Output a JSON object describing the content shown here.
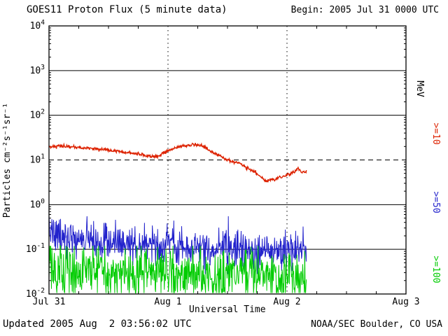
{
  "header": {
    "title": "GOES11 Proton Flux (5 minute data)",
    "begin_label": "Begin: 2005 Jul 31 0000 UTC"
  },
  "footer": {
    "updated_label": "Updated 2005 Aug  2 03:56:02 UTC",
    "credit_label": "NOAA/SEC Boulder, CO USA"
  },
  "chart_data": {
    "type": "line",
    "title": "GOES11 Proton Flux (5 minute data)",
    "xlabel": "Universal Time",
    "ylabel": "Particles cm⁻²s⁻¹sr⁻¹",
    "right_axis_title": "MeV",
    "x_range_hours": [
      0,
      72
    ],
    "y_log_range": [
      -2,
      4
    ],
    "x_ticks": [
      {
        "hours": 0,
        "label": "Jul 31"
      },
      {
        "hours": 24,
        "label": "Aug 1"
      },
      {
        "hours": 48,
        "label": "Aug 2"
      },
      {
        "hours": 72,
        "label": "Aug 3"
      }
    ],
    "y_ticks": [
      {
        "exp": 4,
        "label": "10⁴"
      },
      {
        "exp": 3,
        "label": "10³"
      },
      {
        "exp": 2,
        "label": "10²"
      },
      {
        "exp": 1,
        "label": "10¹"
      },
      {
        "exp": 0,
        "label": "10⁰"
      },
      {
        "exp": -1,
        "label": "10⁻¹"
      },
      {
        "exp": -2,
        "label": "10⁻²"
      }
    ],
    "h_gridlines": [
      {
        "exp": 3,
        "style": "solid"
      },
      {
        "exp": 2,
        "style": "solid"
      },
      {
        "exp": 1,
        "style": "dashed"
      },
      {
        "exp": 0,
        "style": "solid"
      },
      {
        "exp": -1,
        "style": "solid"
      }
    ],
    "v_gridlines_hours": [
      24,
      48
    ],
    "x_minor_tick_hours": 6,
    "y_minor_ticks": true,
    "grid": true,
    "axis_color": "#000000",
    "sample_minutes": 5,
    "data_end_hours": 51.92,
    "series": [
      {
        "name": "ge10",
        "label": ">=10",
        "threshold_mev": 10,
        "color": "#dd2200",
        "stroke_width": 1.4,
        "seed": 42,
        "noise_log_sigma": 0.018,
        "clip": [
          2.6,
          28
        ],
        "trend": [
          [
            0,
            20
          ],
          [
            2,
            20.5
          ],
          [
            4,
            20
          ],
          [
            6,
            19
          ],
          [
            8,
            18.5
          ],
          [
            10,
            17.5
          ],
          [
            12,
            16.5
          ],
          [
            14,
            15.5
          ],
          [
            16,
            14.5
          ],
          [
            18,
            13.5
          ],
          [
            19,
            13
          ],
          [
            20,
            12.3
          ],
          [
            21,
            11.6
          ],
          [
            21.5,
            12.4
          ],
          [
            22,
            12.0
          ],
          [
            22.5,
            12.8
          ],
          [
            23,
            14
          ],
          [
            24,
            16
          ],
          [
            25,
            18
          ],
          [
            26,
            19.5
          ],
          [
            27,
            20.5
          ],
          [
            28,
            21
          ],
          [
            29,
            21.5
          ],
          [
            29.5,
            22
          ],
          [
            30,
            21.5
          ],
          [
            30.5,
            21.8
          ],
          [
            31,
            20.5
          ],
          [
            31.5,
            19
          ],
          [
            32,
            17
          ],
          [
            33,
            14.5
          ],
          [
            34,
            13
          ],
          [
            34.5,
            12.6
          ],
          [
            35,
            11.2
          ],
          [
            36,
            10
          ],
          [
            37,
            9.2
          ],
          [
            38,
            8.6
          ],
          [
            39,
            8
          ],
          [
            40,
            6.8
          ],
          [
            41,
            5.9
          ],
          [
            42,
            5.0
          ],
          [
            42.5,
            4.4
          ],
          [
            43,
            3.9
          ],
          [
            43.5,
            3.5
          ],
          [
            44,
            3.3
          ],
          [
            44.5,
            3.5
          ],
          [
            45,
            3.7
          ],
          [
            45.5,
            3.6
          ],
          [
            46,
            3.9
          ],
          [
            46.5,
            4.2
          ],
          [
            47,
            4.1
          ],
          [
            47.5,
            4.4
          ],
          [
            48,
            4.6
          ],
          [
            48.5,
            4.8
          ],
          [
            49,
            5.2
          ],
          [
            49.5,
            5.5
          ],
          [
            50,
            6.2
          ],
          [
            50.3,
            6.6
          ],
          [
            50.6,
            5.9
          ],
          [
            51,
            5.3
          ],
          [
            51.3,
            5.6
          ],
          [
            51.6,
            5.2
          ],
          [
            51.92,
            5.5
          ]
        ]
      },
      {
        "name": "ge50",
        "label": ">=50",
        "threshold_mev": 50,
        "color": "#2222cc",
        "stroke_width": 1,
        "seed": 7,
        "noise_log_sigma": 0.22,
        "clip": [
          0.028,
          0.55
        ],
        "trend": [
          [
            0,
            0.2
          ],
          [
            0.5,
            0.26
          ],
          [
            1,
            0.22
          ],
          [
            2,
            0.18
          ],
          [
            4,
            0.17
          ],
          [
            8,
            0.16
          ],
          [
            12,
            0.15
          ],
          [
            16,
            0.14
          ],
          [
            20,
            0.135
          ],
          [
            24,
            0.13
          ],
          [
            28,
            0.125
          ],
          [
            32,
            0.12
          ],
          [
            36,
            0.11
          ],
          [
            40,
            0.105
          ],
          [
            44,
            0.1
          ],
          [
            48,
            0.095
          ],
          [
            51.92,
            0.095
          ]
        ]
      },
      {
        "name": "ge100",
        "label": ">=100",
        "threshold_mev": 100,
        "color": "#00cc00",
        "stroke_width": 1,
        "seed": 13,
        "noise_log_sigma": 0.3,
        "clip": [
          0.0105,
          0.12
        ],
        "trend": [
          [
            0,
            0.033
          ],
          [
            4,
            0.031
          ],
          [
            8,
            0.03
          ],
          [
            12,
            0.029
          ],
          [
            16,
            0.028
          ],
          [
            20,
            0.028
          ],
          [
            24,
            0.027
          ],
          [
            28,
            0.027
          ],
          [
            32,
            0.026
          ],
          [
            36,
            0.026
          ],
          [
            40,
            0.025
          ],
          [
            44,
            0.025
          ],
          [
            48,
            0.024
          ],
          [
            51.92,
            0.024
          ]
        ]
      }
    ]
  }
}
